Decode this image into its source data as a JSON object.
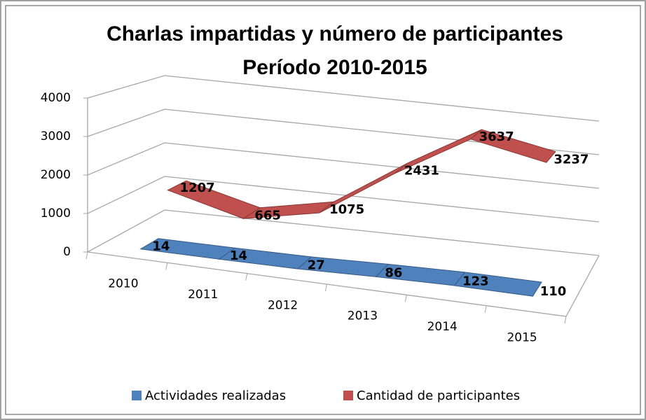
{
  "chart_data": {
    "type": "line3d",
    "title": [
      "Charlas impartidas y número de participantes",
      "Período 2010-2015"
    ],
    "categories": [
      "2010",
      "2011",
      "2012",
      "2013",
      "2014",
      "2015"
    ],
    "series": [
      {
        "name": "Actividades realizadas",
        "color": "#4f81bd",
        "values": [
          14,
          14,
          27,
          86,
          123,
          110
        ]
      },
      {
        "name": "Cantidad de participantes",
        "color": "#c0504d",
        "values": [
          1207,
          665,
          1075,
          2431,
          3637,
          3237
        ]
      }
    ],
    "ylim": [
      0,
      4000
    ],
    "yticks": [
      0,
      1000,
      2000,
      3000,
      4000
    ],
    "grid": true,
    "legend": "bottom"
  }
}
